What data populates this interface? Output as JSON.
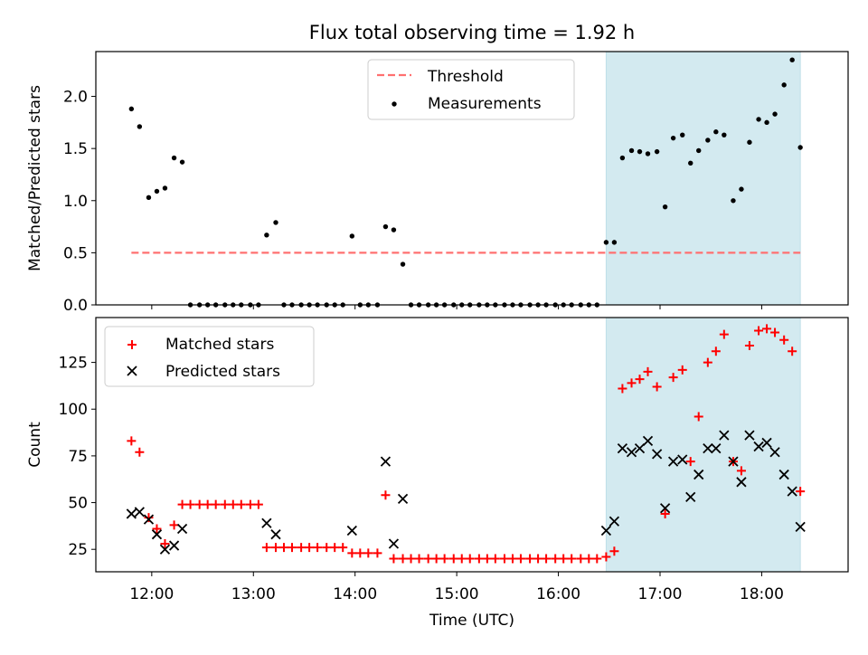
{
  "title": "Flux total observing time = 1.92 h",
  "colors": {
    "threshold": "#ff7070",
    "measurements": "#000000",
    "matched": "#ff0000",
    "predicted": "#000000",
    "shade": "#d3eaf0"
  },
  "chart_data": [
    {
      "type": "scatter",
      "name": "ratio-panel",
      "xlabel": "",
      "ylabel": "Matched/Predicted stars",
      "xlim": [
        11.45,
        18.85
      ],
      "ylim": [
        0,
        2.43
      ],
      "yticks": [
        0.0,
        0.5,
        1.0,
        1.5,
        2.0
      ],
      "ytick_labels": [
        "0.0",
        "0.5",
        "1.0",
        "1.5",
        "2.0"
      ],
      "grid": false,
      "legend_position": "top-center",
      "shaded_region": [
        16.47,
        18.38
      ],
      "threshold": {
        "name": "Threshold",
        "y": 0.5,
        "x": [
          11.8,
          18.38
        ]
      },
      "series": [
        {
          "name": "Measurements",
          "x": [
            11.8,
            11.88,
            11.97,
            12.05,
            12.13,
            12.22,
            12.3,
            12.38,
            12.47,
            12.55,
            12.63,
            12.72,
            12.8,
            12.88,
            12.97,
            13.05,
            13.13,
            13.22,
            13.3,
            13.38,
            13.47,
            13.55,
            13.63,
            13.72,
            13.8,
            13.88,
            13.97,
            14.05,
            14.13,
            14.22,
            14.3,
            14.38,
            14.47,
            14.55,
            14.63,
            14.72,
            14.8,
            14.88,
            14.97,
            15.05,
            15.13,
            15.22,
            15.3,
            15.38,
            15.47,
            15.55,
            15.63,
            15.72,
            15.8,
            15.88,
            15.97,
            16.05,
            16.13,
            16.22,
            16.3,
            16.38,
            16.47,
            16.55,
            16.63,
            16.72,
            16.8,
            16.88,
            16.97,
            17.05,
            17.13,
            17.22,
            17.3,
            17.38,
            17.47,
            17.55,
            17.63,
            17.72,
            17.8,
            17.88,
            17.97,
            18.05,
            18.13,
            18.22,
            18.3,
            18.38
          ],
          "y": [
            1.88,
            1.71,
            1.03,
            1.09,
            1.12,
            1.41,
            1.37,
            0,
            0,
            0,
            0,
            0,
            0,
            0,
            0,
            0,
            0.67,
            0.79,
            0,
            0,
            0,
            0,
            0,
            0,
            0,
            0,
            0.66,
            0,
            0,
            0,
            0.75,
            0.72,
            0.39,
            0,
            0,
            0,
            0,
            0,
            0,
            0,
            0,
            0,
            0,
            0,
            0,
            0,
            0,
            0,
            0,
            0,
            0,
            0,
            0,
            0,
            0,
            0,
            0.6,
            0.6,
            1.41,
            1.48,
            1.47,
            1.45,
            1.47,
            0.94,
            1.6,
            1.63,
            1.36,
            1.48,
            1.58,
            1.66,
            1.63,
            1.0,
            1.11,
            1.56,
            1.78,
            1.75,
            1.83,
            2.11,
            2.35,
            1.51
          ]
        }
      ]
    },
    {
      "type": "scatter",
      "name": "count-panel",
      "xlabel": "Time (UTC)",
      "ylabel": "Count",
      "xlim": [
        11.45,
        18.85
      ],
      "ylim": [
        13,
        149
      ],
      "yticks": [
        25,
        50,
        75,
        100,
        125
      ],
      "ytick_labels": [
        "25",
        "50",
        "75",
        "100",
        "125"
      ],
      "xticks": [
        12,
        13,
        14,
        15,
        16,
        17,
        18
      ],
      "xtick_labels": [
        "12:00",
        "13:00",
        "14:00",
        "15:00",
        "16:00",
        "17:00",
        "18:00"
      ],
      "grid": false,
      "legend_position": "top-left",
      "shaded_region": [
        16.47,
        18.38
      ],
      "series": [
        {
          "name": "Matched stars",
          "marker": "plus",
          "x": [
            11.8,
            11.88,
            11.97,
            12.05,
            12.13,
            12.22,
            12.3,
            12.38,
            12.47,
            12.55,
            12.63,
            12.72,
            12.8,
            12.88,
            12.97,
            13.05,
            13.13,
            13.22,
            13.3,
            13.38,
            13.47,
            13.55,
            13.63,
            13.72,
            13.8,
            13.88,
            13.97,
            14.05,
            14.13,
            14.22,
            14.3,
            14.38,
            14.47,
            14.55,
            14.63,
            14.72,
            14.8,
            14.88,
            14.97,
            15.05,
            15.13,
            15.22,
            15.3,
            15.38,
            15.47,
            15.55,
            15.63,
            15.72,
            15.8,
            15.88,
            15.97,
            16.05,
            16.13,
            16.22,
            16.3,
            16.38,
            16.47,
            16.55,
            16.63,
            16.72,
            16.8,
            16.88,
            16.97,
            17.05,
            17.13,
            17.22,
            17.3,
            17.38,
            17.47,
            17.55,
            17.63,
            17.72,
            17.8,
            17.88,
            17.97,
            18.05,
            18.13,
            18.22,
            18.3,
            18.38
          ],
          "y": [
            83,
            77,
            42,
            36,
            28,
            38,
            49,
            49,
            49,
            49,
            49,
            49,
            49,
            49,
            49,
            49,
            26,
            26,
            26,
            26,
            26,
            26,
            26,
            26,
            26,
            26,
            23,
            23,
            23,
            23,
            54,
            20,
            20,
            20,
            20,
            20,
            20,
            20,
            20,
            20,
            20,
            20,
            20,
            20,
            20,
            20,
            20,
            20,
            20,
            20,
            20,
            20,
            20,
            20,
            20,
            20,
            21,
            24,
            111,
            114,
            116,
            120,
            112,
            44,
            117,
            121,
            72,
            96,
            125,
            131,
            140,
            72,
            67,
            134,
            142,
            143,
            141,
            137,
            131,
            56
          ]
        },
        {
          "name": "Predicted stars",
          "marker": "x",
          "x": [
            11.8,
            11.88,
            11.97,
            12.05,
            12.13,
            12.22,
            12.3,
            13.13,
            13.22,
            13.97,
            14.3,
            14.38,
            14.47,
            16.47,
            16.55,
            16.63,
            16.72,
            16.8,
            16.88,
            16.97,
            17.05,
            17.13,
            17.22,
            17.3,
            17.38,
            17.47,
            17.55,
            17.63,
            17.72,
            17.8,
            17.88,
            17.97,
            18.05,
            18.13,
            18.22,
            18.3,
            18.38
          ],
          "y": [
            44,
            45,
            41,
            33,
            25,
            27,
            36,
            39,
            33,
            35,
            72,
            28,
            52,
            35,
            40,
            79,
            77,
            79,
            83,
            76,
            47,
            72,
            73,
            53,
            65,
            79,
            79,
            86,
            72,
            61,
            86,
            80,
            82,
            77,
            65,
            56,
            37
          ]
        }
      ]
    }
  ]
}
